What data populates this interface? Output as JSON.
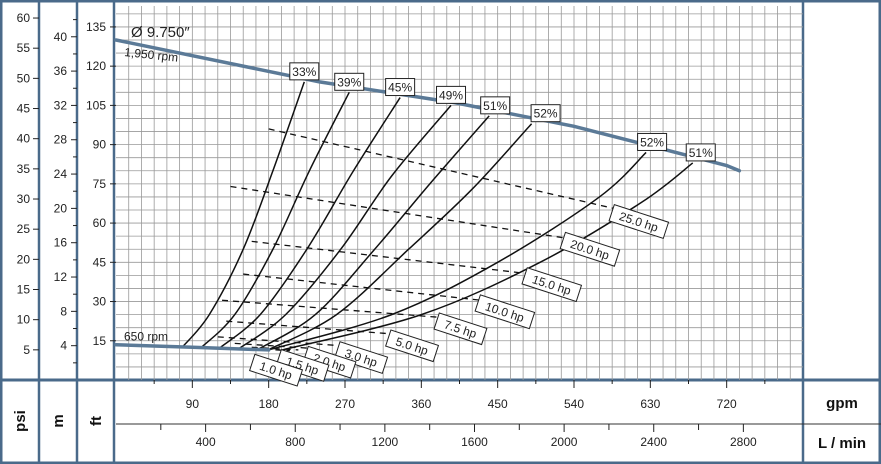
{
  "chart_data": {
    "type": "line",
    "title": "Ø 9.750″",
    "colors": {
      "frame": "#4a6a8a",
      "speed_line": "#5b7a97",
      "grid": "#999999"
    },
    "axes": {
      "x_gpm": {
        "unit": "gpm",
        "ticks": [
          90,
          180,
          270,
          360,
          450,
          540,
          630,
          720
        ],
        "range": [
          0,
          810
        ]
      },
      "x_lmin": {
        "unit": "L / min",
        "ticks": [
          400,
          800,
          1200,
          1600,
          2000,
          2400,
          2800
        ]
      },
      "y_ft": {
        "unit": "ft",
        "ticks": [
          15,
          30,
          45,
          60,
          75,
          90,
          105,
          120,
          135
        ],
        "range": [
          0,
          143
        ]
      },
      "y_m": {
        "unit": "m",
        "ticks": [
          4,
          8,
          12,
          16,
          20,
          24,
          28,
          32,
          36,
          40
        ]
      },
      "y_psi": {
        "unit": "psi",
        "ticks": [
          5,
          10,
          15,
          20,
          25,
          30,
          35,
          40,
          45,
          50,
          55,
          60
        ]
      }
    },
    "speed_lines": [
      {
        "label": "1,950 rpm",
        "points": [
          [
            0,
            130
          ],
          [
            240,
            114
          ],
          [
            400,
            106
          ],
          [
            540,
            97
          ],
          [
            720,
            82
          ],
          [
            735,
            80
          ]
        ]
      },
      {
        "label": "650 rpm",
        "points": [
          [
            0,
            13.5
          ],
          [
            90,
            12.5
          ],
          [
            180,
            11.5
          ]
        ]
      }
    ],
    "efficiency_curves": [
      {
        "label": "33%",
        "points": [
          [
            78,
            12.5
          ],
          [
            110,
            25
          ],
          [
            150,
            50
          ],
          [
            185,
            80
          ],
          [
            222,
            114
          ]
        ]
      },
      {
        "label": "39%",
        "points": [
          [
            100,
            12.3
          ],
          [
            140,
            25
          ],
          [
            185,
            50
          ],
          [
            228,
            80
          ],
          [
            275,
            110
          ]
        ]
      },
      {
        "label": "45%",
        "points": [
          [
            122,
            12.2
          ],
          [
            170,
            25
          ],
          [
            225,
            50
          ],
          [
            280,
            80
          ],
          [
            335,
            108
          ]
        ]
      },
      {
        "label": "49%",
        "points": [
          [
            145,
            12
          ],
          [
            200,
            25
          ],
          [
            265,
            50
          ],
          [
            325,
            78
          ],
          [
            395,
            105
          ]
        ]
      },
      {
        "label": "51%",
        "points": [
          [
            168,
            11.8
          ],
          [
            235,
            25
          ],
          [
            305,
            50
          ],
          [
            370,
            75
          ],
          [
            440,
            101
          ]
        ]
      },
      {
        "label": "52%",
        "points": [
          [
            180,
            11.6
          ],
          [
            260,
            25
          ],
          [
            345,
            50
          ],
          [
            420,
            73
          ],
          [
            490,
            98
          ]
        ]
      },
      {
        "label": "52%",
        "points": [
          [
            180,
            11.5
          ],
          [
            325,
            25
          ],
          [
            450,
            45
          ],
          [
            570,
            70
          ],
          [
            625,
            87
          ]
        ]
      },
      {
        "label": "51%",
        "points": [
          [
            195,
            11.4
          ],
          [
            360,
            25
          ],
          [
            500,
            45
          ],
          [
            620,
            68
          ],
          [
            680,
            83
          ]
        ]
      }
    ],
    "power_lines": [
      {
        "label": "25.0 hp",
        "points": [
          [
            180,
            96
          ],
          [
            595,
            65
          ]
        ]
      },
      {
        "label": "20.0 hp",
        "points": [
          [
            135,
            74
          ],
          [
            535,
            54
          ]
        ]
      },
      {
        "label": "15.0 hp",
        "points": [
          [
            160,
            53
          ],
          [
            490,
            40.5
          ]
        ]
      },
      {
        "label": "10.0 hp",
        "points": [
          [
            150,
            40.5
          ],
          [
            430,
            30.5
          ]
        ]
      },
      {
        "label": "7.5 hp",
        "points": [
          [
            125,
            30.5
          ],
          [
            380,
            24
          ]
        ]
      },
      {
        "label": "5.0 hp",
        "points": [
          [
            130,
            22.5
          ],
          [
            330,
            17.5
          ]
        ]
      },
      {
        "label": "3.0 hp",
        "points": [
          [
            120,
            16.5
          ],
          [
            270,
            13
          ]
        ]
      },
      {
        "label": "2.0 hp",
        "points": [
          [
            140,
            14
          ],
          [
            235,
            12
          ]
        ]
      },
      {
        "label": "1.5 hp",
        "points": [
          [
            160,
            12.5
          ],
          [
            215,
            11.5
          ]
        ]
      },
      {
        "label": "1.0 hp",
        "points": [
          [
            175,
            11.8
          ],
          [
            205,
            11.2
          ]
        ]
      }
    ]
  }
}
